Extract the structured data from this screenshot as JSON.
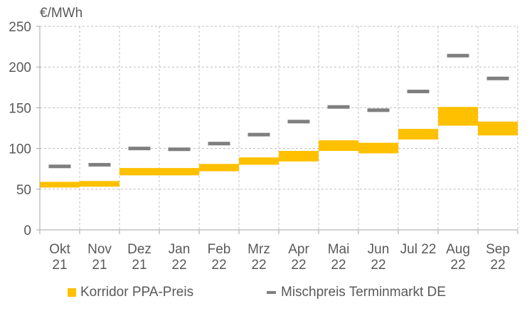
{
  "chart_data": {
    "type": "bar",
    "unit_label": "€/MWh",
    "ylim": [
      0,
      250
    ],
    "yticks": [
      0,
      50,
      100,
      150,
      200,
      250
    ],
    "grid": true,
    "legend_position": "bottom",
    "categories": [
      [
        "Okt",
        "21"
      ],
      [
        "Nov",
        "21"
      ],
      [
        "Dez",
        "21"
      ],
      [
        "Jan",
        "22"
      ],
      [
        "Feb",
        "22"
      ],
      [
        "Mrz",
        "22"
      ],
      [
        "Apr",
        "22"
      ],
      [
        "Mai",
        "22"
      ],
      [
        "Jun",
        "22"
      ],
      [
        "Jul 22",
        ""
      ],
      [
        "Aug",
        "22"
      ],
      [
        "Sep",
        "22"
      ]
    ],
    "series": [
      {
        "name": "Korridor PPA-Preis",
        "kind": "range",
        "color": "#FFC000",
        "low": [
          52,
          53,
          67,
          67,
          72,
          80,
          84,
          97,
          94,
          111,
          128,
          116
        ],
        "high": [
          59,
          60,
          76,
          76,
          81,
          89,
          97,
          110,
          107,
          124,
          151,
          133
        ]
      },
      {
        "name": "Mischpreis Terminmarkt DE",
        "kind": "marker",
        "color": "#7F7F7F",
        "values": [
          78,
          80,
          100,
          99,
          106,
          117,
          133,
          151,
          147,
          170,
          214,
          186
        ]
      }
    ]
  },
  "legend": {
    "items": [
      {
        "label": "Korridor PPA-Preis",
        "color": "#FFC000",
        "shape": "box"
      },
      {
        "label": "Mischpreis Terminmarkt DE",
        "color": "#7F7F7F",
        "shape": "dash"
      }
    ]
  }
}
